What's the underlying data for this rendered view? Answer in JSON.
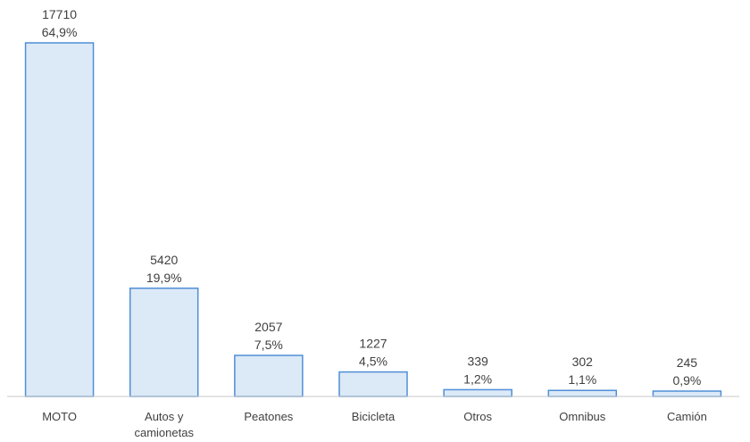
{
  "chart_data": {
    "type": "bar",
    "categories": [
      "MOTO",
      "Autos y camionetas",
      "Peatones",
      "Bicicleta",
      "Otros",
      "Omnibus",
      "Camión"
    ],
    "category_lines": [
      [
        "MOTO"
      ],
      [
        "Autos y",
        "camionetas"
      ],
      [
        "Peatones"
      ],
      [
        "Bicicleta"
      ],
      [
        "Otros"
      ],
      [
        "Omnibus"
      ],
      [
        "Camión"
      ]
    ],
    "values": [
      17710,
      5420,
      2057,
      1227,
      339,
      302,
      245
    ],
    "value_labels": [
      "17710",
      "5420",
      "2057",
      "1227",
      "339",
      "302",
      "245"
    ],
    "percent_labels": [
      "64,9%",
      "19,9%",
      "7,5%",
      "4,5%",
      "1,2%",
      "1,1%",
      "0,9%"
    ],
    "ylim": [
      0,
      17710
    ],
    "grid": false,
    "legend": "none",
    "colors": {
      "bar_fill": "#dce9f7",
      "bar_stroke": "#4f8fd6",
      "axis": "#c8c8c8",
      "text": "#404040"
    }
  }
}
